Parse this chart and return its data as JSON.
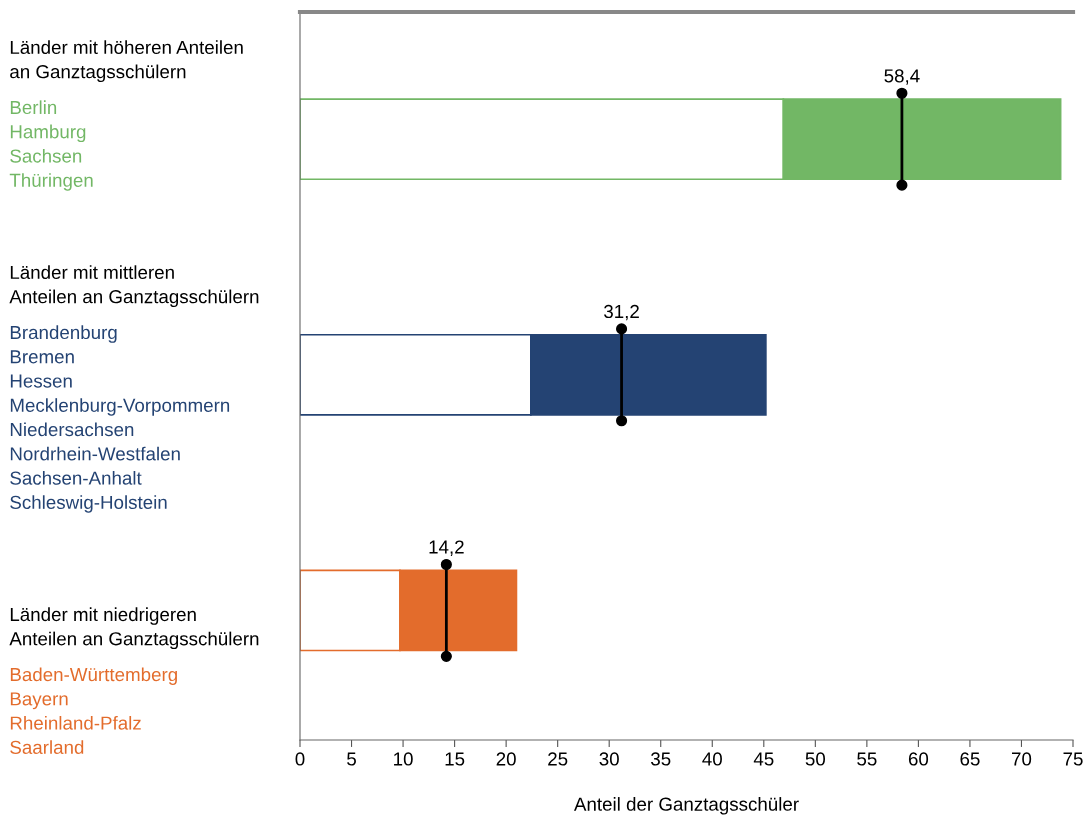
{
  "chart_data": {
    "type": "bar",
    "orientation": "horizontal",
    "stacked": true,
    "categories": [
      "Länder mit höheren Anteilen\nan Ganztagsschülern",
      "Länder mit mittleren\nAnteilen an Ganztagsschülern",
      "Länder mit niedrigeren\nAnteilen an Ganztagsschülern"
    ],
    "series": [
      {
        "color": "#ffffff",
        "values": [
          46.9,
          22.4,
          9.7
        ]
      },
      {
        "colors": [
          "#72b765",
          "#244373",
          "#e36c2c"
        ],
        "values": [
          26.9,
          22.8,
          11.3
        ]
      },
      {
        "type": "scatter",
        "color": "#000000",
        "values": [
          58.4,
          31.2,
          14.2
        ],
        "value_labels": [
          "58,4",
          "31,2",
          "14,2"
        ]
      }
    ],
    "xlabel": "Anteil der Ganztagsschüler",
    "xlim": [
      0,
      75
    ],
    "xticks": [
      0,
      5,
      10,
      15,
      20,
      25,
      30,
      35,
      40,
      45,
      50,
      55,
      60,
      65,
      70,
      75
    ],
    "tick_labels": "x",
    "grid": false,
    "annotations": [
      "Berlin\nHamburg\nSachsen\nThüringen",
      "Brandenburg\nBremen\nHessen\nMecklenburg-Vorpommern\nNiedersachsen\nNordrhein-Westfalen\nSachsen-Anhalt\nSchleswig-Holstein",
      "Baden-Württemberg\nBayern\nRheinland-Pfalz\nSaarland"
    ]
  }
}
